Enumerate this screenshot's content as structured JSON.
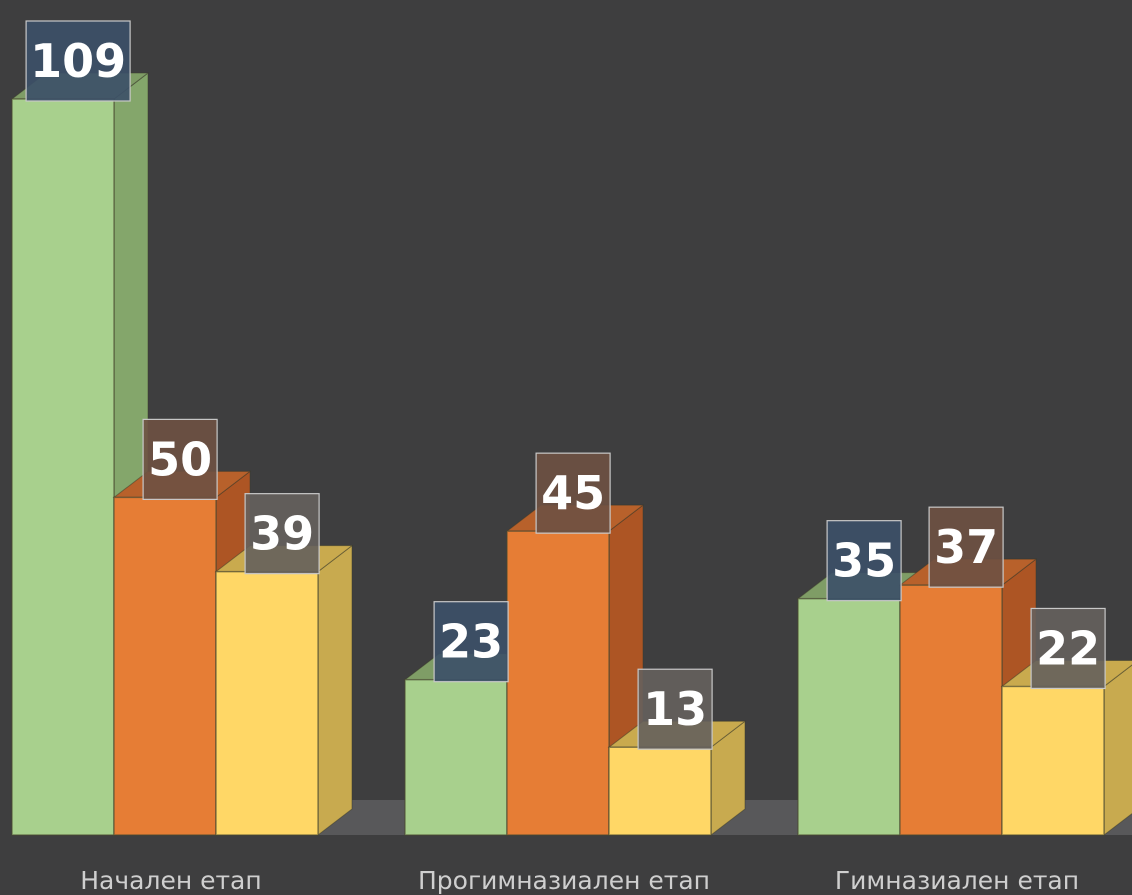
{
  "chart_data": {
    "type": "bar",
    "categories": [
      "Начален етап",
      "Прогимназиален етап",
      "Гимназиален етап"
    ],
    "series": [
      {
        "values": [
          109,
          23,
          35
        ],
        "color": "#a8d08d",
        "side_color": "#84a66b",
        "top_color": "#7f9d66",
        "label_bg": "#3c5068"
      },
      {
        "values": [
          50,
          45,
          37
        ],
        "color": "#e67d35",
        "side_color": "#ad5524",
        "top_color": "#b8612b",
        "label_bg": "#6e5143"
      },
      {
        "values": [
          39,
          13,
          22
        ],
        "color": "#ffd766",
        "side_color": "#c8aa4f",
        "top_color": "#c9aa4e",
        "label_bg": "#65615d"
      }
    ],
    "ylim": [
      0,
      109
    ],
    "grid": false,
    "style": "3d-clustered-column",
    "data_labels": true,
    "background": "#3e3e3f",
    "floor_color": "#5a5a5b",
    "label_text_color": "#ffffff",
    "category_label_color": "#cfcfcf"
  }
}
